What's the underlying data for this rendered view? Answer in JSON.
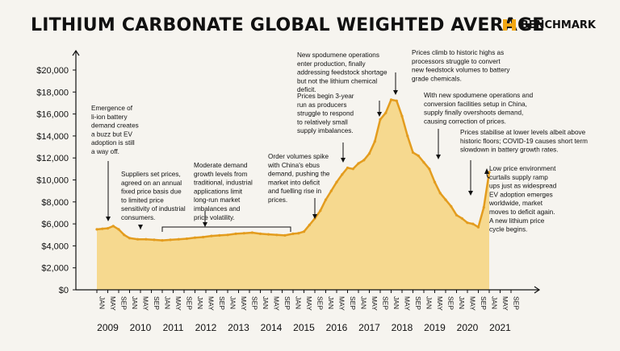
{
  "header": {
    "title": "LITHIUM CARBONATE GLOBAL WEIGHTED AVERAGE",
    "brand": "BENCHMARK"
  },
  "colors": {
    "line": "#e39c1e",
    "fill": "#f6d98f",
    "background": "#f6f4ef",
    "axis": "#111111",
    "brand_accent": "#f3a712"
  },
  "chart_data": {
    "type": "area",
    "title": "LITHIUM CARBONATE GLOBAL WEIGHTED AVERAGE",
    "xlabel": "",
    "ylabel": "",
    "ylim": [
      0,
      20000
    ],
    "y_ticks": [
      0,
      2000,
      4000,
      6000,
      8000,
      10000,
      12000,
      14000,
      16000,
      18000,
      20000
    ],
    "y_tick_labels": [
      "$0",
      "$2,000",
      "$4,000",
      "$6,000",
      "$8,000",
      "$10,000",
      "$12,000",
      "$14,000",
      "$16,000",
      "$18,000",
      "$20,000"
    ],
    "x_month_labels": [
      "JAN",
      "MAY",
      "SEP"
    ],
    "years": [
      "2009",
      "2010",
      "2011",
      "2012",
      "2013",
      "2014",
      "2015",
      "2016",
      "2017",
      "2018",
      "2019",
      "2020",
      "2021"
    ],
    "grid": false,
    "series": [
      {
        "x": [
          "2009-01",
          "2009-03",
          "2009-05",
          "2009-07",
          "2009-09",
          "2009-11",
          "2010-01",
          "2010-04",
          "2010-07",
          "2010-10",
          "2011-01",
          "2011-04",
          "2011-07",
          "2011-10",
          "2012-01",
          "2012-04",
          "2012-07",
          "2012-10",
          "2013-01",
          "2013-04",
          "2013-07",
          "2013-10",
          "2014-01",
          "2014-04",
          "2014-07",
          "2014-10",
          "2015-01",
          "2015-03",
          "2015-05",
          "2015-07",
          "2015-09",
          "2015-11",
          "2016-01",
          "2016-03",
          "2016-05",
          "2016-07",
          "2016-09",
          "2016-11",
          "2017-01",
          "2017-03",
          "2017-05",
          "2017-07",
          "2017-09",
          "2017-11",
          "2018-01",
          "2018-03",
          "2018-05",
          "2018-07",
          "2018-09",
          "2018-11",
          "2019-01",
          "2019-03",
          "2019-05",
          "2019-07",
          "2019-09",
          "2019-11",
          "2020-01",
          "2020-03",
          "2020-05",
          "2020-07",
          "2020-09",
          "2020-11",
          "2021-01"
        ],
        "values": [
          5500,
          5550,
          5600,
          5800,
          5500,
          5000,
          4700,
          4600,
          4600,
          4550,
          4500,
          4550,
          4600,
          4650,
          4750,
          4800,
          4900,
          4950,
          5000,
          5100,
          5150,
          5200,
          5100,
          5050,
          5000,
          4950,
          5100,
          5150,
          5300,
          5900,
          6500,
          7200,
          8200,
          9000,
          9800,
          10500,
          11100,
          11000,
          11500,
          11800,
          12400,
          13500,
          15500,
          16100,
          17300,
          17200,
          15800,
          14000,
          12500,
          12200,
          11600,
          11000,
          9800,
          8800,
          8200,
          7600,
          6800,
          6500,
          6100,
          6000,
          5700,
          7500,
          10700
        ]
      }
    ],
    "annotations": [
      {
        "text": [
          "Emergence of",
          "li-ion battery",
          "demand creates",
          "a buzz but EV",
          "adoption is still",
          "a way off."
        ]
      },
      {
        "text": [
          "Suppliers set prices,",
          "agreed on an annual",
          "fixed price basis due",
          "to limited price",
          "sensitivity of industrial",
          "consumers."
        ]
      },
      {
        "text": [
          "Moderate demand",
          "growth levels from",
          "traditional, industrial",
          "applications limit",
          "long-run market",
          "imbalances and",
          "price volatility."
        ]
      },
      {
        "text": [
          "Order volumes spike",
          "with China's ebus",
          "demand, pushing the",
          "market into deficit",
          "and fuelling rise in",
          "prices."
        ]
      },
      {
        "text": [
          "Prices begin 3-year",
          "run as producers",
          "struggle to respond",
          "to relatively small",
          "supply imbalances."
        ]
      },
      {
        "text": [
          "New spodumene operations",
          "enter production, finally",
          "addressing feedstock shortage",
          "but not the lithium chemical",
          "deficit."
        ]
      },
      {
        "text": [
          "Prices climb to historic highs as",
          "processors struggle to convert",
          "new feedstock volumes to battery",
          "grade chemicals."
        ]
      },
      {
        "text": [
          "With new spodumene operations and",
          "conversion facilities setup in China,",
          "supply finally overshoots demand,",
          "causing correction of prices."
        ]
      },
      {
        "text": [
          "Prices stabilise at lower levels albeit above",
          "historic floors; COVID-19 causes short term",
          "slowdown in battery growth rates."
        ]
      },
      {
        "text": [
          "Low price environment",
          "curtails supply ramp",
          "ups just as widespread",
          "EV adoption emerges",
          "worldwide, market",
          "moves to deficit again.",
          "A new lithium price",
          "cycle begins."
        ]
      }
    ]
  }
}
